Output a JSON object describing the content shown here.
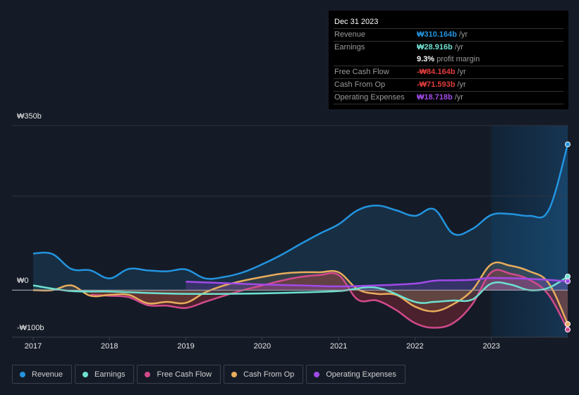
{
  "tooltip": {
    "date": "Dec 31 2023",
    "rows": [
      {
        "label": "Revenue",
        "value": "₩310.164b",
        "unit": "/yr",
        "color": "#2394df"
      },
      {
        "label": "Earnings",
        "value": "₩28.916b",
        "unit": "/yr",
        "color": "#6ee0d0"
      },
      {
        "label": "",
        "value": "9.3%",
        "unit": "profit margin",
        "color": "#ffffff"
      },
      {
        "label": "Free Cash Flow",
        "value": "-₩84.164b",
        "unit": "/yr",
        "color": "#e03c3c"
      },
      {
        "label": "Cash From Op",
        "value": "-₩71.593b",
        "unit": "/yr",
        "color": "#e03c3c"
      },
      {
        "label": "Operating Expenses",
        "value": "₩18.718b",
        "unit": "/yr",
        "color": "#a24ae8"
      }
    ]
  },
  "legend": [
    {
      "label": "Revenue",
      "color": "#2394df"
    },
    {
      "label": "Earnings",
      "color": "#6ee0d0"
    },
    {
      "label": "Free Cash Flow",
      "color": "#d04a8c"
    },
    {
      "label": "Cash From Op",
      "color": "#e8ac5c"
    },
    {
      "label": "Operating Expenses",
      "color": "#a24ae8"
    }
  ],
  "chart_data": {
    "type": "line",
    "title": "",
    "xlabel": "",
    "ylabel": "",
    "ylim": [
      -100,
      350
    ],
    "y_ticks": [
      {
        "value": 350,
        "label": "₩350b"
      },
      {
        "value": 0,
        "label": "₩0"
      },
      {
        "value": -100,
        "label": "-₩100b"
      }
    ],
    "x_ticks": [
      "2017",
      "2018",
      "2019",
      "2020",
      "2021",
      "2022",
      "2023"
    ],
    "xlim": [
      2017.0,
      2024.0
    ],
    "highlight_start": 2023.0,
    "series": [
      {
        "name": "Revenue",
        "color": "#2394df",
        "x": [
          2017.0,
          2017.25,
          2017.5,
          2017.75,
          2018.0,
          2018.25,
          2018.5,
          2018.75,
          2019.0,
          2019.25,
          2019.5,
          2019.75,
          2020.0,
          2020.25,
          2020.5,
          2020.75,
          2021.0,
          2021.25,
          2021.5,
          2021.75,
          2022.0,
          2022.25,
          2022.5,
          2022.75,
          2023.0,
          2023.25,
          2023.5,
          2023.75,
          2024.0
        ],
        "y": [
          78,
          77,
          45,
          42,
          25,
          45,
          42,
          40,
          44,
          25,
          28,
          38,
          55,
          75,
          98,
          120,
          140,
          170,
          180,
          170,
          158,
          172,
          120,
          130,
          160,
          162,
          158,
          170,
          310
        ]
      },
      {
        "name": "Earnings",
        "color": "#6ee0d0",
        "x": [
          2017.0,
          2017.5,
          2018.0,
          2018.5,
          2019.0,
          2019.5,
          2020.0,
          2020.5,
          2021.0,
          2021.5,
          2022.0,
          2022.25,
          2022.5,
          2022.75,
          2023.0,
          2023.25,
          2023.5,
          2023.75,
          2024.0
        ],
        "y": [
          10,
          -2,
          -3,
          -6,
          -8,
          -8,
          -7,
          -5,
          -2,
          5,
          -25,
          -25,
          -22,
          -20,
          14,
          12,
          0,
          5,
          29
        ]
      },
      {
        "name": "Free Cash Flow",
        "color": "#d04a8c",
        "x": [
          2017.75,
          2018.0,
          2018.25,
          2018.5,
          2018.75,
          2019.0,
          2019.25,
          2019.5,
          2019.75,
          2020.0,
          2020.25,
          2020.5,
          2020.75,
          2021.0,
          2021.25,
          2021.5,
          2021.75,
          2022.0,
          2022.25,
          2022.5,
          2022.75,
          2023.0,
          2023.25,
          2023.5,
          2023.75,
          2024.0
        ],
        "y": [
          -10,
          -12,
          -15,
          -32,
          -33,
          -38,
          -25,
          -12,
          0,
          10,
          20,
          28,
          32,
          32,
          -20,
          -22,
          -42,
          -70,
          -80,
          -70,
          -30,
          38,
          35,
          22,
          -10,
          -84
        ]
      },
      {
        "name": "Cash From Op",
        "color": "#e8ac5c",
        "x": [
          2017.0,
          2017.25,
          2017.5,
          2017.75,
          2018.0,
          2018.25,
          2018.5,
          2018.75,
          2019.0,
          2019.25,
          2019.5,
          2019.75,
          2020.0,
          2020.25,
          2020.5,
          2020.75,
          2021.0,
          2021.25,
          2021.5,
          2021.75,
          2022.0,
          2022.25,
          2022.5,
          2022.75,
          2023.0,
          2023.25,
          2023.5,
          2023.75,
          2024.0
        ],
        "y": [
          0,
          0,
          10,
          -12,
          -10,
          -10,
          -28,
          -25,
          -27,
          -5,
          10,
          20,
          28,
          35,
          38,
          38,
          38,
          2,
          -8,
          -10,
          -35,
          -45,
          -30,
          0,
          55,
          52,
          40,
          15,
          -72
        ]
      },
      {
        "name": "Operating Expenses",
        "color": "#a24ae8",
        "x": [
          2019.0,
          2019.5,
          2020.0,
          2020.5,
          2021.0,
          2021.5,
          2022.0,
          2022.25,
          2022.5,
          2022.75,
          2023.0,
          2023.5,
          2024.0
        ],
        "y": [
          18,
          15,
          12,
          10,
          8,
          10,
          14,
          20,
          21,
          22,
          26,
          24,
          19
        ]
      }
    ]
  }
}
